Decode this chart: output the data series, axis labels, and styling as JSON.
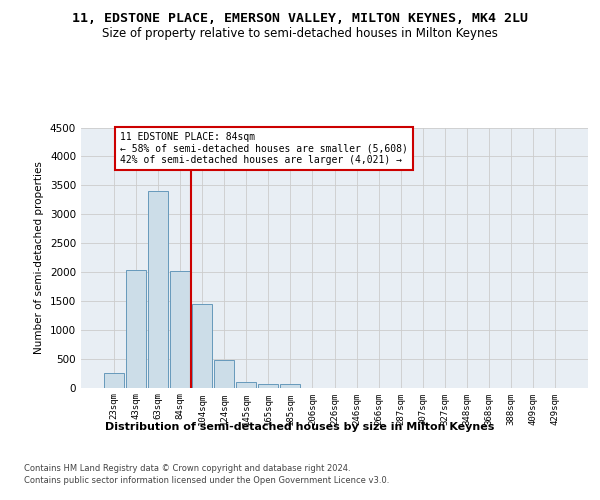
{
  "title_line1": "11, EDSTONE PLACE, EMERSON VALLEY, MILTON KEYNES, MK4 2LU",
  "title_line2": "Size of property relative to semi-detached houses in Milton Keynes",
  "xlabel": "Distribution of semi-detached houses by size in Milton Keynes",
  "ylabel": "Number of semi-detached properties",
  "footer_line1": "Contains HM Land Registry data © Crown copyright and database right 2024.",
  "footer_line2": "Contains public sector information licensed under the Open Government Licence v3.0.",
  "categories": [
    "23sqm",
    "43sqm",
    "63sqm",
    "84sqm",
    "104sqm",
    "124sqm",
    "145sqm",
    "165sqm",
    "185sqm",
    "206sqm",
    "226sqm",
    "246sqm",
    "266sqm",
    "287sqm",
    "307sqm",
    "327sqm",
    "348sqm",
    "368sqm",
    "388sqm",
    "409sqm",
    "429sqm"
  ],
  "values": [
    250,
    2030,
    3400,
    2020,
    1450,
    480,
    100,
    65,
    55,
    0,
    0,
    0,
    0,
    0,
    0,
    0,
    0,
    0,
    0,
    0,
    0
  ],
  "bar_color": "#ccdde8",
  "bar_edge_color": "#6699bb",
  "highlight_line_color": "#cc0000",
  "annotation_text": "11 EDSTONE PLACE: 84sqm\n← 58% of semi-detached houses are smaller (5,608)\n42% of semi-detached houses are larger (4,021) →",
  "annotation_box_color": "#ffffff",
  "annotation_box_edge": "#cc0000",
  "ylim": [
    0,
    4500
  ],
  "yticks": [
    0,
    500,
    1000,
    1500,
    2000,
    2500,
    3000,
    3500,
    4000,
    4500
  ],
  "grid_color": "#cccccc",
  "bg_color": "#e8eef4",
  "title_fontsize": 9.5,
  "subtitle_fontsize": 8.5
}
